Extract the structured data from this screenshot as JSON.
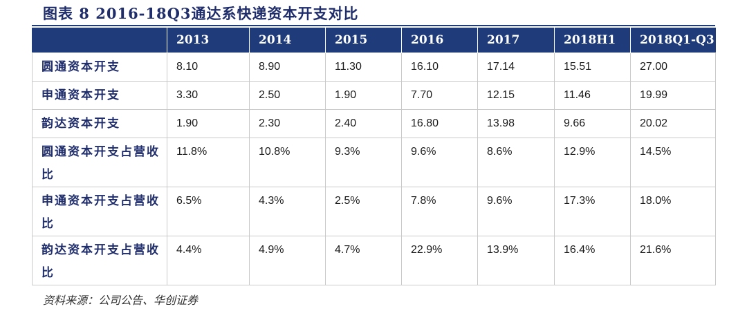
{
  "figure": {
    "caption": "图表 8   2016-18Q3通达系快递资本开支对比",
    "source": "资料来源：公司公告、华创证券"
  },
  "table": {
    "headers": [
      "",
      "2013",
      "2014",
      "2015",
      "2016",
      "2017",
      "2018H1",
      "2018Q1-Q3"
    ],
    "rows": [
      {
        "label": "圆通资本开支",
        "values": [
          "8.10",
          "8.90",
          "11.30",
          "16.10",
          "17.14",
          "15.51",
          "27.00"
        ]
      },
      {
        "label": "申通资本开支",
        "values": [
          "3.30",
          "2.50",
          "1.90",
          "7.70",
          "12.15",
          "11.46",
          "19.99"
        ]
      },
      {
        "label": "韵达资本开支",
        "values": [
          "1.90",
          "2.30",
          "2.40",
          "16.80",
          "13.98",
          "9.66",
          "20.02"
        ]
      },
      {
        "label": "圆通资本开支占营收比",
        "values": [
          "11.8%",
          "10.8%",
          "9.3%",
          "9.6%",
          "8.6%",
          "12.9%",
          "14.5%"
        ]
      },
      {
        "label": "申通资本开支占营收比",
        "values": [
          "6.5%",
          "4.3%",
          "2.5%",
          "7.8%",
          "9.6%",
          "17.3%",
          "18.0%"
        ]
      },
      {
        "label": "韵达资本开支占营收比",
        "values": [
          "4.4%",
          "4.9%",
          "4.7%",
          "22.9%",
          "13.9%",
          "16.4%",
          "21.6%"
        ]
      }
    ]
  },
  "colors": {
    "header_background": "#1f3b7a",
    "header_text": "#ffffff",
    "label_text": "#1f2d6b",
    "grid_line": "#c9c9c9"
  }
}
